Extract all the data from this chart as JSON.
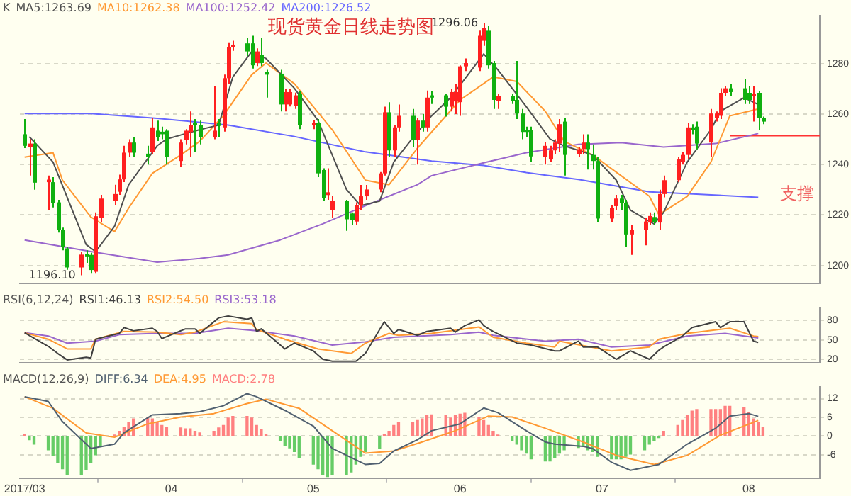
{
  "chart_data": [
    {
      "type": "candlestick",
      "title": "现货黄金日线走势图",
      "legend": "top left",
      "legend_title": "K",
      "grid": "y",
      "tick_labels": "y",
      "x": [
        "2017-03-01",
        "2017-03-02",
        "2017-03-03",
        "2017-03-06",
        "2017-03-07",
        "2017-03-08",
        "2017-03-09",
        "2017-03-10",
        "2017-03-13",
        "2017-03-14",
        "2017-03-15",
        "2017-03-16",
        "2017-03-17",
        "2017-03-20",
        "2017-03-21",
        "2017-03-22",
        "2017-03-23",
        "2017-03-24",
        "2017-03-27",
        "2017-03-28",
        "2017-03-29",
        "2017-03-30",
        "2017-03-31",
        "2017-04-03",
        "2017-04-04",
        "2017-04-05",
        "2017-04-06",
        "2017-04-07",
        "2017-04-10",
        "2017-04-11",
        "2017-04-12",
        "2017-04-13",
        "2017-04-14",
        "2017-04-17",
        "2017-04-18",
        "2017-04-19",
        "2017-04-20",
        "2017-04-21",
        "2017-04-24",
        "2017-04-25",
        "2017-04-26",
        "2017-04-27",
        "2017-04-28",
        "2017-05-01",
        "2017-05-02",
        "2017-05-03",
        "2017-05-04",
        "2017-05-05",
        "2017-05-08",
        "2017-05-09",
        "2017-05-10",
        "2017-05-11",
        "2017-05-12",
        "2017-05-15",
        "2017-05-16",
        "2017-05-17",
        "2017-05-18",
        "2017-05-19",
        "2017-05-22",
        "2017-05-23",
        "2017-05-24",
        "2017-05-25",
        "2017-05-26",
        "2017-05-29",
        "2017-05-30",
        "2017-05-31",
        "2017-06-01",
        "2017-06-02",
        "2017-06-05",
        "2017-06-06",
        "2017-06-07",
        "2017-06-08",
        "2017-06-09",
        "2017-06-12",
        "2017-06-13",
        "2017-06-14",
        "2017-06-15",
        "2017-06-16",
        "2017-06-19",
        "2017-06-20",
        "2017-06-21",
        "2017-06-22",
        "2017-06-23",
        "2017-06-26",
        "2017-06-27",
        "2017-06-28",
        "2017-06-29",
        "2017-06-30",
        "2017-07-03",
        "2017-07-04",
        "2017-07-05",
        "2017-07-06",
        "2017-07-07",
        "2017-07-10",
        "2017-07-11",
        "2017-07-12",
        "2017-07-13",
        "2017-07-14",
        "2017-07-17",
        "2017-07-18",
        "2017-07-19",
        "2017-07-20",
        "2017-07-21",
        "2017-07-24",
        "2017-07-25",
        "2017-07-26",
        "2017-07-27",
        "2017-07-28",
        "2017-07-31",
        "2017-08-01",
        "2017-08-02",
        "2017-08-03",
        "2017-08-04"
      ],
      "ohlc": [
        [
          1252,
          1258,
          1246.5,
          1247.4
        ],
        [
          1246.9,
          1250,
          1235.6,
          1248.3
        ],
        [
          1248.3,
          1250,
          1230,
          1232.8
        ],
        [
          1233,
          1235.6,
          1222,
          1234
        ],
        [
          1233,
          1235,
          1223,
          1224.7
        ],
        [
          1225,
          1226,
          1213,
          1214
        ],
        [
          1214,
          1215,
          1206,
          1207.3
        ],
        [
          1206.8,
          1207.3,
          1198.3,
          1199.2
        ],
        [
          1199.2,
          1205.5,
          1196.1,
          1204.3
        ],
        [
          1204.5,
          1206,
          1201,
          1203.6
        ],
        [
          1204.2,
          1205,
          1197,
          1198.2
        ],
        [
          1197.5,
          1221,
          1197,
          1219.5
        ],
        [
          1218.8,
          1228,
          1217,
          1226.5
        ],
        [
          1225.6,
          1232,
          1224,
          1228.3
        ],
        [
          1229.2,
          1236,
          1228,
          1234.1
        ],
        [
          1234.1,
          1247.4,
          1233,
          1244.7
        ],
        [
          1244.7,
          1250,
          1243,
          1248.7
        ],
        [
          1248.7,
          1251,
          1243,
          1244.7
        ],
        [
          1244.3,
          1247.4,
          1240,
          1242.9
        ],
        [
          1245,
          1258.3,
          1244,
          1254.7
        ],
        [
          1253.4,
          1257.4,
          1249.3,
          1251
        ],
        [
          1253,
          1255,
          1250,
          1252
        ],
        [
          1253.4,
          1254,
          1240,
          1242.9
        ],
        [
          1241.4,
          1250,
          1239,
          1248.7
        ],
        [
          1249.8,
          1254,
          1248,
          1253.4
        ],
        [
          1252.9,
          1261,
          1243,
          1255.6
        ],
        [
          1256.4,
          1258,
          1245,
          1255.5
        ],
        [
          1255.6,
          1257.4,
          1248,
          1251
        ],
        [
          1251,
          1271,
          1250,
          1253.4
        ],
        [
          1256.4,
          1258,
          1251,
          1255.3
        ],
        [
          1254.7,
          1275.6,
          1253,
          1274.2
        ],
        [
          1274.2,
          1288.4,
          1272,
          1286.6
        ],
        [
          1286.6,
          1289,
          1285,
          1287.5
        ],
        [
          1288,
          1290,
          1283,
          1284.8
        ],
        [
          1288,
          1291,
          1278,
          1279.3
        ],
        [
          1280.2,
          1286,
          1279,
          1284.8
        ],
        [
          1283.3,
          1290,
          1279,
          1280.2
        ],
        [
          1276.6,
          1277.5,
          1266.5,
          1275.6
        ],
        [
          1276,
          1277.5,
          1261,
          1263.8
        ],
        [
          1263.8,
          1270,
          1261,
          1268.7
        ],
        [
          1263.8,
          1270,
          1263,
          1268.7
        ],
        [
          1263.3,
          1268.5,
          1262,
          1267.4
        ],
        [
          1268,
          1269,
          1254,
          1255.6
        ],
        [
          1255.6,
          1257.5,
          1254,
          1256.4
        ],
        [
          1256.5,
          1258,
          1235,
          1236.5
        ],
        [
          1237.8,
          1238.5,
          1225.5,
          1226.8
        ],
        [
          1227.9,
          1238.5,
          1226,
          1229
        ],
        [
          1221.9,
          1227.5,
          1219,
          1225.6
        ],
        [
          1225.6,
          1226,
          1213.7,
          1218.3
        ],
        [
          1220.6,
          1221,
          1216,
          1218.1
        ],
        [
          1217.4,
          1225,
          1216,
          1223.8
        ],
        [
          1223.8,
          1231.9,
          1222,
          1227.4
        ],
        [
          1227.4,
          1231.9,
          1226,
          1230.1
        ],
        [
          1230.1,
          1237,
          1229,
          1236.5
        ],
        [
          1236.5,
          1262.9,
          1235.6,
          1260.7
        ],
        [
          1260.7,
          1264.7,
          1243,
          1245.6
        ],
        [
          1245.6,
          1255.6,
          1243,
          1254.7
        ],
        [
          1254.7,
          1263.8,
          1253,
          1259.3
        ],
        [
          1259.3,
          1262,
          1247,
          1249.8
        ],
        [
          1249.8,
          1258.3,
          1240,
          1257.4
        ],
        [
          1257.4,
          1260,
          1253,
          1254.7
        ],
        [
          1254.7,
          1269.3,
          1253,
          1266.5
        ],
        [
          1267.4,
          1269,
          1264,
          1266.5
        ],
        [
          1267.4,
          1268,
          1259,
          1262.9
        ],
        [
          1262.9,
          1270,
          1261,
          1268.7
        ],
        [
          1265,
          1272,
          1260,
          1268.7
        ],
        [
          1264.7,
          1279.3,
          1259.3,
          1278.9
        ],
        [
          1278.9,
          1282,
          1277,
          1280.2
        ],
        [
          1278.4,
          1293,
          1277,
          1291
        ],
        [
          1289,
          1296.06,
          1287,
          1294
        ],
        [
          1293,
          1295,
          1278,
          1279.3
        ],
        [
          1280.2,
          1281,
          1262,
          1265.6
        ],
        [
          1265.1,
          1268,
          1262,
          1267
        ],
        [
          1267,
          1268,
          1264,
          1265.1
        ],
        [
          1265.6,
          1281,
          1258,
          1260.2
        ],
        [
          1260.2,
          1262,
          1250,
          1252.9
        ],
        [
          1253.8,
          1255,
          1251,
          1252.9
        ],
        [
          1253.8,
          1255,
          1241,
          1243.2
        ],
        [
          1242.9,
          1249,
          1240,
          1247.4
        ],
        [
          1242,
          1247.4,
          1241,
          1245.6
        ],
        [
          1245.6,
          1250,
          1244,
          1248.7
        ],
        [
          1248.3,
          1258,
          1245,
          1256
        ],
        [
          1257,
          1258.3,
          1235.6,
          1243.8
        ],
        [
          1244.1,
          1247,
          1243,
          1246.1
        ],
        [
          1246.1,
          1252,
          1244,
          1248.7
        ],
        [
          1248.7,
          1252,
          1238,
          1246.1
        ],
        [
          1243.8,
          1248,
          1238,
          1241.4
        ],
        [
          1241.4,
          1243,
          1217,
          1218.6
        ],
        [
          1218.6,
          1224,
          1217,
          1222.8
        ],
        [
          1223.5,
          1228,
          1222,
          1226.5
        ],
        [
          1226.5,
          1228,
          1222,
          1224.7
        ],
        [
          1224.7,
          1226,
          1207.3,
          1212.3
        ],
        [
          1212.3,
          1216,
          1204.2,
          1214.1
        ],
        [
          1214.1,
          1219,
          1208,
          1217.4
        ],
        [
          1217,
          1221,
          1216,
          1219.6
        ],
        [
          1219.2,
          1221,
          1216,
          1217
        ],
        [
          1217,
          1230,
          1214,
          1228.3
        ],
        [
          1228.3,
          1235.6,
          1227,
          1233.8
        ],
        [
          1233.8,
          1243,
          1233,
          1242
        ],
        [
          1241,
          1245,
          1240,
          1243.8
        ],
        [
          1243.8,
          1256.5,
          1242,
          1254.7
        ],
        [
          1254.7,
          1256,
          1252,
          1253.8
        ],
        [
          1255,
          1257,
          1246,
          1248.3
        ],
        [
          1248.7,
          1262,
          1243,
          1260.2
        ],
        [
          1258.3,
          1261,
          1257,
          1260.2
        ],
        [
          1259.3,
          1270.2,
          1258,
          1268.4
        ],
        [
          1268.4,
          1271,
          1267,
          1270.2
        ],
        [
          1270.2,
          1272,
          1267,
          1268.7
        ],
        [
          1270.2,
          1273.8,
          1264,
          1265.6
        ],
        [
          1268.4,
          1271,
          1264,
          1265.6
        ],
        [
          1267,
          1271,
          1257,
          1267.9
        ],
        [
          1268.4,
          1269,
          1253.8,
          1258.3
        ],
        [
          1258.3,
          1259,
          1256,
          1257
        ]
      ],
      "series": [
        {
          "name": "MA5:1263.69",
          "type": "line",
          "color": "#505050",
          "x": [
            "2017-03-02",
            "2017-03-07",
            "2017-03-14",
            "2017-03-16",
            "2017-03-20",
            "2017-03-23",
            "2017-03-29",
            "2017-03-31",
            "2017-04-07",
            "2017-04-11",
            "2017-04-14",
            "2017-04-18",
            "2017-04-21",
            "2017-04-27",
            "2017-05-02",
            "2017-05-08",
            "2017-05-11",
            "2017-05-15",
            "2017-05-18",
            "2017-05-23",
            "2017-05-26",
            "2017-05-30",
            "2017-06-06",
            "2017-06-09",
            "2017-06-15",
            "2017-06-20",
            "2017-06-23",
            "2017-06-29",
            "2017-07-04",
            "2017-07-07",
            "2017-07-12",
            "2017-07-14",
            "2017-07-19",
            "2017-07-24",
            "2017-07-26",
            "2017-07-31",
            "2017-08-03"
          ],
          "values": [
            1251,
            1241,
            1208.3,
            1205.5,
            1215.5,
            1232,
            1247.4,
            1250.1,
            1253.8,
            1255.6,
            1274.7,
            1284.8,
            1282,
            1270.2,
            1257.4,
            1230.1,
            1223.7,
            1225.5,
            1241,
            1252.9,
            1259.3,
            1266.5,
            1283.8,
            1277.5,
            1262.9,
            1250.1,
            1247.4,
            1243.8,
            1233.8,
            1221.9,
            1216.4,
            1221,
            1241,
            1253.8,
            1261.1,
            1266.5,
            1263.8
          ]
        },
        {
          "name": "MA10:1262.38",
          "type": "line",
          "color": "#ff9933",
          "x": [
            "2017-03-01",
            "2017-03-07",
            "2017-03-09",
            "2017-03-15",
            "2017-03-20",
            "2017-03-23",
            "2017-03-28",
            "2017-04-03",
            "2017-04-07",
            "2017-04-12",
            "2017-04-18",
            "2017-04-21",
            "2017-04-27",
            "2017-05-05",
            "2017-05-12",
            "2017-05-17",
            "2017-05-23",
            "2017-05-26",
            "2017-06-01",
            "2017-06-08",
            "2017-06-13",
            "2017-06-19",
            "2017-06-23",
            "2017-06-29",
            "2017-07-05",
            "2017-07-11",
            "2017-07-13",
            "2017-07-19",
            "2017-07-24",
            "2017-07-28",
            "2017-08-03"
          ],
          "values": [
            1242.9,
            1244.7,
            1233.8,
            1219.2,
            1213.4,
            1222.8,
            1236.5,
            1243.8,
            1249.2,
            1259.3,
            1275.6,
            1280.2,
            1272,
            1253.8,
            1233.8,
            1232,
            1246.5,
            1252.9,
            1265.6,
            1274.7,
            1272.9,
            1261.1,
            1249.2,
            1243.8,
            1235.6,
            1227.4,
            1220.1,
            1227.4,
            1241,
            1259.3,
            1262
          ]
        },
        {
          "name": "MA100:1252.42",
          "type": "line",
          "color": "#9966cc",
          "x": [
            "2017-03-01",
            "2017-03-15",
            "2017-03-29",
            "2017-04-07",
            "2017-04-13",
            "2017-04-24",
            "2017-05-03",
            "2017-05-12",
            "2017-05-23",
            "2017-05-26",
            "2017-06-06",
            "2017-06-15",
            "2017-06-26",
            "2017-07-05",
            "2017-07-14",
            "2017-07-25",
            "2017-08-03"
          ],
          "values": [
            1210.1,
            1205.5,
            1201.3,
            1202.8,
            1204.2,
            1210.1,
            1216.5,
            1223.7,
            1232,
            1235.6,
            1240.7,
            1244.7,
            1248,
            1248.7,
            1246.9,
            1248.3,
            1252.3
          ]
        },
        {
          "name": "MA200:1226.52",
          "type": "line",
          "color": "#6666ff",
          "x": [
            "2017-03-01",
            "2017-03-15",
            "2017-03-29",
            "2017-04-13",
            "2017-04-27",
            "2017-05-12",
            "2017-05-26",
            "2017-06-06",
            "2017-06-15",
            "2017-06-26",
            "2017-07-11",
            "2017-08-03"
          ],
          "values": [
            1260.2,
            1260.2,
            1258.3,
            1255.6,
            1251.1,
            1245,
            1241.4,
            1239.6,
            1236.8,
            1234.1,
            1229.2,
            1227
          ]
        },
        {
          "type": "line",
          "color": "#ff3333",
          "x": [
            "2017-07-28",
            "2017-08-16"
          ],
          "values": [
            1251.4,
            1251.4
          ]
        }
      ],
      "annotations": [
        {
          "text": "1296.06",
          "x": "2017-06-06",
          "y": 1296.06
        },
        {
          "text": "1196.10",
          "x": "2017-03-13",
          "y": 1196.1
        },
        "支撑"
      ],
      "xlim": [
        "2017-02-28",
        "2017-08-16"
      ],
      "ylim": [
        1193,
        1299
      ],
      "yticks": [
        1200,
        1220,
        1240,
        1260,
        1280
      ]
    },
    {
      "type": "line",
      "legend": "top left",
      "legend_title": "RSI(6,12,24)",
      "grid": "y",
      "tick_labels": "y",
      "xlim": [
        "2017-02-28",
        "2017-08-16"
      ],
      "ylim": [
        15,
        100
      ],
      "yticks": [
        20,
        50,
        80
      ],
      "series": [
        {
          "name": "RSI1:46.13",
          "color": "#404040",
          "x": [
            "2017-03-01",
            "2017-03-06",
            "2017-03-08",
            "2017-03-10",
            "2017-03-14",
            "2017-03-15",
            "2017-03-16",
            "2017-03-21",
            "2017-03-22",
            "2017-03-24",
            "2017-03-28",
            "2017-03-29",
            "2017-03-30",
            "2017-04-04",
            "2017-04-06",
            "2017-04-07",
            "2017-04-11",
            "2017-04-13",
            "2017-04-17",
            "2017-04-18",
            "2017-04-19",
            "2017-04-20",
            "2017-04-25",
            "2017-04-27",
            "2017-05-01",
            "2017-05-03",
            "2017-05-05",
            "2017-05-10",
            "2017-05-12",
            "2017-05-16",
            "2017-05-18",
            "2017-05-19",
            "2017-05-23",
            "2017-05-25",
            "2017-05-30",
            "2017-05-31",
            "2017-06-02",
            "2017-06-05",
            "2017-06-06",
            "2017-06-08",
            "2017-06-13",
            "2017-06-16",
            "2017-06-21",
            "2017-06-22",
            "2017-06-26",
            "2017-06-27",
            "2017-06-30",
            "2017-07-04",
            "2017-07-07",
            "2017-07-11",
            "2017-07-13",
            "2017-07-14",
            "2017-07-18",
            "2017-07-20",
            "2017-07-25",
            "2017-07-26",
            "2017-07-28",
            "2017-07-31",
            "2017-08-02",
            "2017-08-03"
          ],
          "values": [
            61,
            40,
            29,
            19,
            23,
            22,
            51,
            60,
            69,
            64,
            68,
            63,
            52,
            67,
            67,
            60,
            84,
            87,
            82,
            84,
            63,
            67,
            36,
            45,
            33,
            20,
            17,
            17,
            29,
            78,
            60,
            66,
            57,
            63,
            68,
            62,
            72,
            81,
            72,
            63,
            45,
            42,
            33,
            33,
            48,
            39,
            39,
            20,
            33,
            20,
            34,
            39,
            56,
            69,
            78,
            69,
            78,
            78,
            48,
            46
          ]
        },
        {
          "name": "RSI2:54.50",
          "color": "#ff9933",
          "x": [
            "2017-03-01",
            "2017-03-06",
            "2017-03-10",
            "2017-03-15",
            "2017-03-16",
            "2017-03-22",
            "2017-03-29",
            "2017-04-03",
            "2017-04-06",
            "2017-04-12",
            "2017-04-18",
            "2017-04-19",
            "2017-04-25",
            "2017-05-02",
            "2017-05-09",
            "2017-05-12",
            "2017-05-17",
            "2017-05-19",
            "2017-05-26",
            "2017-06-05",
            "2017-06-08",
            "2017-06-15",
            "2017-06-21",
            "2017-06-22",
            "2017-07-03",
            "2017-07-11",
            "2017-07-13",
            "2017-07-19",
            "2017-07-28",
            "2017-08-02",
            "2017-08-03"
          ],
          "values": [
            61,
            51,
            36,
            36,
            51,
            63,
            62,
            58,
            62,
            78,
            75,
            66,
            51,
            36,
            29,
            45,
            60,
            57,
            60,
            70,
            54,
            45,
            39,
            48,
            33,
            39,
            51,
            60,
            68,
            56,
            55
          ]
        },
        {
          "name": "RSI3:53.18",
          "color": "#9966cc",
          "x": [
            "2017-03-01",
            "2017-03-06",
            "2017-03-10",
            "2017-03-16",
            "2017-03-21",
            "2017-03-29",
            "2017-04-06",
            "2017-04-13",
            "2017-04-19",
            "2017-04-27",
            "2017-05-05",
            "2017-05-12",
            "2017-05-18",
            "2017-05-30",
            "2017-06-05",
            "2017-06-08",
            "2017-06-19",
            "2017-06-26",
            "2017-07-03",
            "2017-07-11",
            "2017-07-19",
            "2017-07-27",
            "2017-08-03"
          ],
          "values": [
            61,
            56,
            45,
            48,
            58,
            60,
            60,
            68,
            64,
            56,
            42,
            47,
            54,
            58,
            62,
            57,
            48,
            51,
            39,
            42,
            56,
            60,
            53
          ]
        }
      ]
    },
    {
      "type": "line",
      "legend": "top left",
      "legend_title": "MACD(12,26,9)",
      "grid": "y",
      "xlim": [
        "2017-02-28",
        "2017-08-16"
      ],
      "ylim": [
        -13.5,
        15.75
      ],
      "yticks": [
        -6,
        0,
        6,
        12
      ],
      "xticks": [
        {
          "value": "2017-03-01",
          "label": "2017/03"
        },
        {
          "value": "2017-04-01",
          "label": "04"
        },
        {
          "value": "2017-05-01",
          "label": "05"
        },
        {
          "value": "2017-06-01",
          "label": "06"
        },
        {
          "value": "2017-07-01",
          "label": "07"
        },
        {
          "value": "2017-08-01",
          "label": "08"
        }
      ],
      "x": [
        "2017-03-01",
        "2017-03-02",
        "2017-03-03",
        "2017-03-06",
        "2017-03-07",
        "2017-03-08",
        "2017-03-09",
        "2017-03-10",
        "2017-03-13",
        "2017-03-14",
        "2017-03-15",
        "2017-03-16",
        "2017-03-17",
        "2017-03-20",
        "2017-03-21",
        "2017-03-22",
        "2017-03-23",
        "2017-03-24",
        "2017-03-27",
        "2017-03-28",
        "2017-03-29",
        "2017-03-30",
        "2017-03-31",
        "2017-04-03",
        "2017-04-04",
        "2017-04-05",
        "2017-04-06",
        "2017-04-07",
        "2017-04-10",
        "2017-04-11",
        "2017-04-12",
        "2017-04-13",
        "2017-04-14",
        "2017-04-17",
        "2017-04-18",
        "2017-04-19",
        "2017-04-20",
        "2017-04-21",
        "2017-04-24",
        "2017-04-25",
        "2017-04-26",
        "2017-04-27",
        "2017-04-28",
        "2017-05-01",
        "2017-05-02",
        "2017-05-03",
        "2017-05-04",
        "2017-05-05",
        "2017-05-08",
        "2017-05-09",
        "2017-05-10",
        "2017-05-11",
        "2017-05-12",
        "2017-05-15",
        "2017-05-16",
        "2017-05-17",
        "2017-05-18",
        "2017-05-19",
        "2017-05-22",
        "2017-05-23",
        "2017-05-24",
        "2017-05-25",
        "2017-05-26",
        "2017-05-29",
        "2017-05-30",
        "2017-05-31",
        "2017-06-01",
        "2017-06-02",
        "2017-06-05",
        "2017-06-06",
        "2017-06-07",
        "2017-06-08",
        "2017-06-09",
        "2017-06-12",
        "2017-06-13",
        "2017-06-14",
        "2017-06-15",
        "2017-06-16",
        "2017-06-19",
        "2017-06-20",
        "2017-06-21",
        "2017-06-22",
        "2017-06-23",
        "2017-06-26",
        "2017-06-27",
        "2017-06-28",
        "2017-06-29",
        "2017-06-30",
        "2017-07-03",
        "2017-07-04",
        "2017-07-05",
        "2017-07-06",
        "2017-07-07",
        "2017-07-10",
        "2017-07-11",
        "2017-07-12",
        "2017-07-13",
        "2017-07-14",
        "2017-07-17",
        "2017-07-18",
        "2017-07-19",
        "2017-07-20",
        "2017-07-21",
        "2017-07-24",
        "2017-07-25",
        "2017-07-26",
        "2017-07-27",
        "2017-07-28",
        "2017-07-31",
        "2017-08-01",
        "2017-08-02",
        "2017-08-03",
        "2017-08-04"
      ],
      "series": [
        {
          "name": "DIFF:6.34",
          "color": "#506070",
          "x": [
            "2017-03-01",
            "2017-03-06",
            "2017-03-09",
            "2017-03-15",
            "2017-03-20",
            "2017-03-22",
            "2017-03-28",
            "2017-04-03",
            "2017-04-07",
            "2017-04-12",
            "2017-04-17",
            "2017-04-19",
            "2017-04-25",
            "2017-05-01",
            "2017-05-05",
            "2017-05-12",
            "2017-05-15",
            "2017-05-18",
            "2017-05-23",
            "2017-05-26",
            "2017-06-01",
            "2017-06-06",
            "2017-06-09",
            "2017-06-15",
            "2017-06-19",
            "2017-06-21",
            "2017-06-27",
            "2017-06-29",
            "2017-07-03",
            "2017-07-07",
            "2017-07-13",
            "2017-07-19",
            "2017-07-25",
            "2017-07-28",
            "2017-08-01",
            "2017-08-03"
          ],
          "values": [
            12.6,
            11.1,
            4.6,
            -4,
            -2.6,
            1,
            6.8,
            7.2,
            7.8,
            9.7,
            13.6,
            12.6,
            8.2,
            3.2,
            -4,
            -9.1,
            -8.8,
            -4.8,
            -1.2,
            1.7,
            3.9,
            9,
            7.5,
            1.7,
            -1.9,
            -2.6,
            -3.3,
            -4,
            -8.4,
            -11,
            -9.1,
            -2.6,
            2.5,
            6.4,
            7.2,
            6.3
          ]
        },
        {
          "name": "DEA:4.95",
          "color": "#ff9933",
          "x": [
            "2017-03-01",
            "2017-03-07",
            "2017-03-14",
            "2017-03-20",
            "2017-03-27",
            "2017-04-03",
            "2017-04-10",
            "2017-04-17",
            "2017-04-21",
            "2017-04-28",
            "2017-05-05",
            "2017-05-12",
            "2017-05-18",
            "2017-05-24",
            "2017-05-31",
            "2017-06-07",
            "2017-06-12",
            "2017-06-19",
            "2017-06-27",
            "2017-07-04",
            "2017-07-12",
            "2017-07-19",
            "2017-07-26",
            "2017-08-03"
          ],
          "values": [
            12.6,
            8.9,
            1,
            -0.4,
            3.9,
            6.1,
            7.2,
            10.4,
            11.8,
            8.9,
            1.7,
            -5.5,
            -4.8,
            -1.9,
            1.7,
            6.4,
            6.1,
            2.5,
            -1.9,
            -6.2,
            -9.1,
            -6.2,
            0.3,
            5
          ]
        },
        {
          "name": "MACD:2.78",
          "type": "bar",
          "values": [
            0.6,
            -1.2,
            -2.6,
            -4.4,
            -6.3,
            -8.5,
            -10.5,
            -12.4,
            -12.4,
            -10.9,
            -8.6,
            -6,
            -3,
            0.3,
            1.5,
            2.8,
            4.4,
            5.5,
            5.8,
            5.5,
            4.4,
            3.4,
            2.8,
            2.6,
            2.3,
            2.3,
            1.5,
            1,
            1.5,
            2.6,
            3.4,
            5.8,
            6.3,
            6.3,
            5.8,
            3.4,
            2,
            0.5,
            -1.5,
            -3,
            -3.8,
            -5,
            -7,
            -9,
            -10.5,
            -12.5,
            -13,
            -12.5,
            -12.5,
            -11.5,
            -9,
            -6.5,
            -5,
            -4,
            0.5,
            1.5,
            3.4,
            4.4,
            4.4,
            5,
            5.5,
            6.5,
            6.8,
            6.5,
            5.8,
            6.5,
            7,
            7.3,
            6,
            5,
            3.4,
            1.5,
            0.3,
            -1.5,
            -2.6,
            -4.4,
            -5.5,
            -7.3,
            -8,
            -8,
            -6.9,
            -5.5,
            -4.4,
            -3.7,
            -3,
            -4.4,
            -5,
            -6.5,
            -7.3,
            -7.3,
            -7.3,
            -6.5,
            -5.8,
            -4.4,
            -2.6,
            -1.5,
            -0.5,
            1.5,
            3.4,
            5,
            6.5,
            8,
            8.5,
            8.5,
            8.5,
            8.5,
            9.5,
            9.5,
            9,
            7.5,
            5.5,
            4.4,
            2.8
          ],
          "colors": [
            "#ff8080",
            "#66cc66",
            "#66cc66",
            "#66cc66",
            "#66cc66",
            "#66cc66",
            "#66cc66",
            "#66cc66",
            "#66cc66",
            "#66cc66",
            "#66cc66",
            "#66cc66",
            "#66cc66",
            "#ff8080",
            "#ff8080",
            "#ff8080",
            "#ff8080",
            "#ff8080",
            "#ff8080",
            "#ff8080",
            "#ff8080",
            "#ff8080",
            "#ff8080",
            "#ff8080",
            "#ff8080",
            "#ff8080",
            "#ff8080",
            "#ff8080",
            "#ff8080",
            "#ff8080",
            "#ff8080",
            "#ff8080",
            "#ff8080",
            "#ff8080",
            "#ff8080",
            "#ff8080",
            "#ff8080",
            "#ff8080",
            "#66cc66",
            "#66cc66",
            "#66cc66",
            "#66cc66",
            "#66cc66",
            "#66cc66",
            "#66cc66",
            "#66cc66",
            "#66cc66",
            "#66cc66",
            "#66cc66",
            "#66cc66",
            "#66cc66",
            "#66cc66",
            "#66cc66",
            "#66cc66",
            "#ff8080",
            "#ff8080",
            "#ff8080",
            "#ff8080",
            "#ff8080",
            "#ff8080",
            "#ff8080",
            "#ff8080",
            "#ff8080",
            "#ff8080",
            "#ff8080",
            "#ff8080",
            "#ff8080",
            "#ff8080",
            "#ff8080",
            "#ff8080",
            "#ff8080",
            "#ff8080",
            "#ff8080",
            "#66cc66",
            "#66cc66",
            "#66cc66",
            "#66cc66",
            "#66cc66",
            "#66cc66",
            "#66cc66",
            "#66cc66",
            "#66cc66",
            "#66cc66",
            "#66cc66",
            "#66cc66",
            "#66cc66",
            "#66cc66",
            "#66cc66",
            "#66cc66",
            "#66cc66",
            "#66cc66",
            "#66cc66",
            "#66cc66",
            "#66cc66",
            "#66cc66",
            "#66cc66",
            "#66cc66",
            "#ff8080",
            "#ff8080",
            "#ff8080",
            "#ff8080",
            "#ff8080",
            "#ff8080",
            "#ff8080",
            "#ff8080",
            "#ff8080",
            "#ff8080",
            "#ff8080",
            "#ff8080",
            "#ff8080",
            "#ff8080",
            "#ff8080",
            "#ff8080"
          ]
        }
      ]
    }
  ]
}
